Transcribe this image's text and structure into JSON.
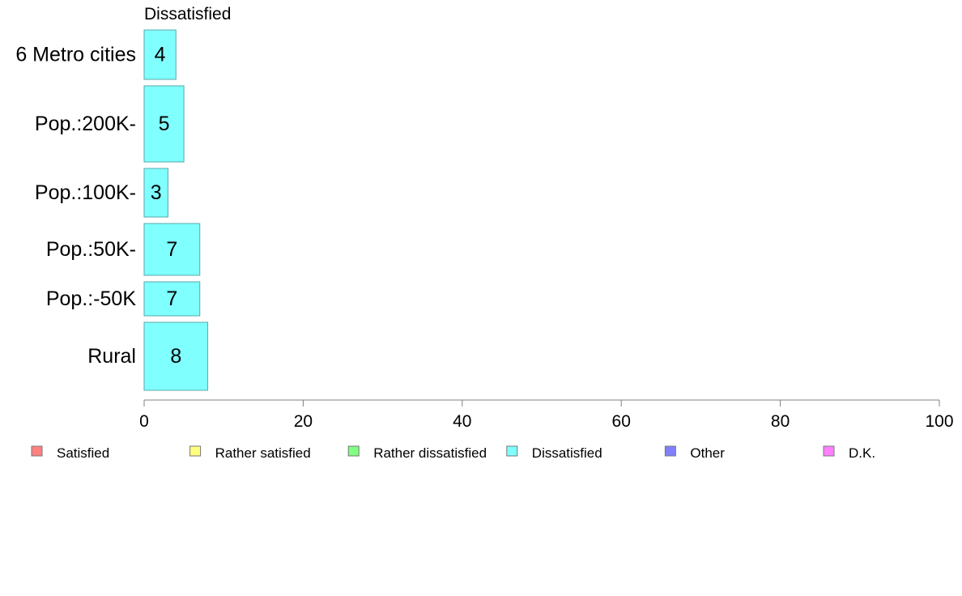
{
  "chart_data": {
    "type": "bar",
    "orientation": "horizontal",
    "title": "Dissatisfied",
    "categories": [
      "6 Metro cities",
      "Pop.:200K-",
      "Pop.:100K-",
      "Pop.:50K-",
      "Pop.:-50K",
      "Rural"
    ],
    "series": [
      {
        "name": "Dissatisfied",
        "color": "#80ffff",
        "values": [
          4,
          5,
          3,
          7,
          7,
          8
        ],
        "labels": [
          "4",
          "5",
          "3",
          "7",
          "7",
          "8"
        ]
      }
    ],
    "xlim": [
      0,
      100
    ],
    "xticks": [
      0,
      20,
      40,
      60,
      80,
      100
    ],
    "grid": false,
    "legend": {
      "placement": "bottom",
      "items": [
        {
          "label": "Satisfied",
          "color": "#ff8080"
        },
        {
          "label": "Rather satisfied",
          "color": "#ffff80"
        },
        {
          "label": "Rather dissatisfied",
          "color": "#80ff80"
        },
        {
          "label": "Dissatisfied",
          "color": "#80ffff"
        },
        {
          "label": "Other",
          "color": "#8080ff"
        },
        {
          "label": "D.K.",
          "color": "#ff80ff"
        }
      ]
    }
  }
}
